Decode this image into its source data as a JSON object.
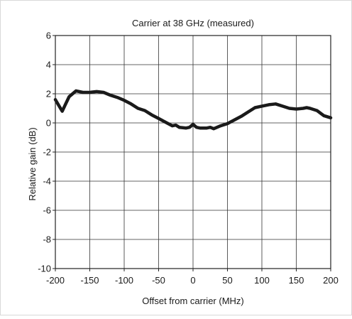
{
  "chart_data": {
    "type": "line",
    "title": "Carrier at 38 GHz (measured)",
    "xlabel": "Offset from carrier (MHz)",
    "ylabel": "Relative gain (dB)",
    "xlim": [
      -200,
      200
    ],
    "ylim": [
      -10,
      6
    ],
    "x_ticks": [
      -200,
      -150,
      -100,
      -50,
      0,
      50,
      100,
      150,
      200
    ],
    "y_ticks": [
      -10,
      -8,
      -6,
      -4,
      -2,
      0,
      2,
      4,
      6
    ],
    "x_tick_labels": [
      "-200",
      "-150",
      "-100",
      "-50",
      "0",
      "50",
      "100",
      "150",
      "200"
    ],
    "y_tick_labels": [
      "-10",
      "-8",
      "-6",
      "-4",
      "-2",
      "0",
      "2",
      "4",
      "6"
    ],
    "grid": true,
    "colors": {
      "line": "#1a1a1a",
      "grid": "#333333",
      "frame": "#222222"
    },
    "series": [
      {
        "x": [
          -200,
          -195,
          -190,
          -185,
          -180,
          -175,
          -170,
          -160,
          -150,
          -140,
          -130,
          -120,
          -110,
          -100,
          -90,
          -80,
          -70,
          -60,
          -50,
          -40,
          -30,
          -25,
          -20,
          -10,
          -5,
          0,
          5,
          10,
          20,
          25,
          30,
          40,
          50,
          60,
          70,
          80,
          90,
          100,
          110,
          120,
          130,
          140,
          150,
          160,
          165,
          170,
          180,
          190,
          200
        ],
        "y": [
          1.6,
          1.2,
          0.8,
          1.3,
          1.8,
          2.0,
          2.2,
          2.1,
          2.1,
          2.15,
          2.1,
          1.9,
          1.75,
          1.55,
          1.3,
          1.0,
          0.85,
          0.55,
          0.3,
          0.05,
          -0.2,
          -0.15,
          -0.3,
          -0.35,
          -0.3,
          -0.1,
          -0.3,
          -0.35,
          -0.35,
          -0.3,
          -0.4,
          -0.2,
          -0.05,
          0.2,
          0.45,
          0.75,
          1.05,
          1.15,
          1.25,
          1.3,
          1.15,
          1.0,
          0.95,
          1.0,
          1.05,
          1.0,
          0.85,
          0.5,
          0.35
        ]
      }
    ]
  }
}
